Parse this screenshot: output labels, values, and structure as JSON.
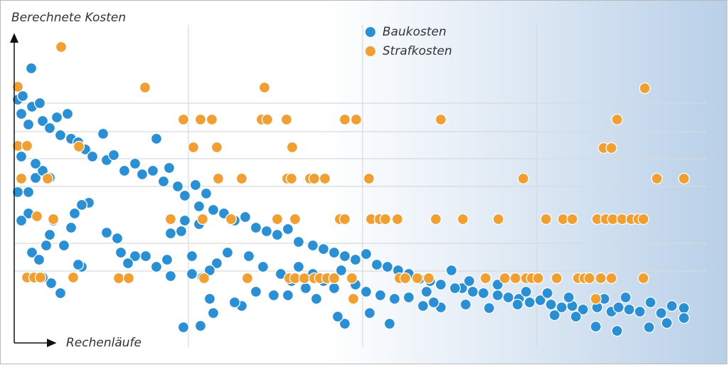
{
  "chart_data": {
    "type": "scatter",
    "y_label": "Berechnete Kosten",
    "x_label": "Rechenläufe",
    "xlim": [
      20,
      1000
    ],
    "ylim": [
      0,
      450
    ],
    "series": [
      {
        "name": "Baukosten",
        "color": "#2b8fd4",
        "x": [
          44,
          25,
          32,
          45,
          56,
          30,
          40,
          60,
          70,
          80,
          95,
          85,
          100,
          110,
          120,
          145,
          130,
          150,
          160,
          175,
          190,
          220,
          200,
          215,
          238,
          230,
          250,
          275,
          260,
          290,
          280,
          300,
          315,
          330,
          345,
          360,
          375,
          390,
          405,
          420,
          440,
          455,
          470,
          485,
          500,
          515,
          530,
          545,
          560,
          575,
          590,
          605,
          620,
          635,
          650,
          665,
          680,
          700,
          715,
          730,
          745,
          760,
          775,
          790,
          805,
          820,
          840,
          860,
          870,
          885,
          900,
          915,
          930,
          945,
          962,
          962,
          938,
          913,
          868,
          838,
          810,
          780,
          728,
          688,
          655,
          620,
          595,
          548,
          520,
          485,
          475,
          445,
          405,
          385,
          360,
          340,
          330,
          300,
          295,
          282,
          258,
          305,
          295,
          285,
          270,
          270,
          240,
          235,
          220,
          205,
          190,
          180,
          170,
          165,
          150,
          125,
          115,
          105,
          100,
          90,
          115,
          110,
          85,
          72,
          60,
          45,
          55,
          65,
          70,
          75,
          40,
          30,
          25,
          40,
          50,
          60,
          30,
          50,
          70,
          240,
          255,
          260,
          280,
          320,
          350,
          370,
          395,
          410,
          430,
          420,
          440,
          455,
          470,
          480,
          500,
          515,
          535,
          555,
          575,
          600,
          610,
          640,
          660,
          700,
          740,
          770,
          800,
          850,
          880
        ],
        "values": [
          384,
          340,
          345,
          330,
          335,
          320,
          305,
          310,
          300,
          315,
          320,
          290,
          285,
          280,
          270,
          292,
          260,
          255,
          262,
          240,
          250,
          285,
          235,
          240,
          244,
          225,
          218,
          220,
          205,
          208,
          190,
          185,
          180,
          170,
          175,
          160,
          155,
          150,
          158,
          140,
          135,
          130,
          125,
          120,
          115,
          123,
          108,
          105,
          100,
          95,
          88,
          85,
          80,
          100,
          75,
          70,
          68,
          65,
          62,
          60,
          55,
          58,
          52,
          48,
          50,
          45,
          48,
          42,
          48,
          45,
          42,
          55,
          40,
          50,
          47,
          33,
          26,
          20,
          15,
          21,
          35,
          37,
          52,
          47,
          52,
          48,
          50,
          25,
          40,
          25,
          35,
          60,
          65,
          65,
          70,
          50,
          55,
          40,
          60,
          22,
          20,
          110,
          100,
          90,
          95,
          120,
          92,
          115,
          105,
          120,
          120,
          110,
          125,
          145,
          153,
          195,
          192,
          180,
          160,
          135,
          105,
          108,
          68,
          82,
          90,
          125,
          115,
          135,
          150,
          170,
          180,
          170,
          210,
          210,
          230,
          240,
          260,
          250,
          230,
          152,
          155,
          170,
          165,
          125,
          120,
          105,
          95,
          85,
          75,
          105,
          95,
          85,
          75,
          100,
          80,
          70,
          65,
          60,
          62,
          70,
          55,
          75,
          85,
          80,
          70,
          68,
          62,
          60,
          62
        ]
      },
      {
        "name": "Strafkosten",
        "color": "#f0a032",
        "x": [
          86,
          25,
          204,
          372,
          907,
          258,
          282,
          298,
          368,
          376,
          403,
          485,
          501,
          620,
          868,
          25,
          38,
          111,
          272,
          305,
          411,
          849,
          860,
          30,
          67,
          307,
          340,
          404,
          410,
          436,
          442,
          457,
          519,
          736,
          924,
          962,
          52,
          75,
          240,
          285,
          325,
          390,
          415,
          478,
          485,
          522,
          534,
          542,
          559,
          613,
          651,
          701,
          768,
          792,
          805,
          840,
          852,
          862,
          875,
          888,
          898,
          905,
          38,
          48,
          57,
          103,
          167,
          181,
          287,
          348,
          407,
          415,
          428,
          442,
          450,
          460,
          470,
          495,
          562,
          570,
          587,
          603,
          683,
          710,
          725,
          740,
          748,
          757,
          783,
          813,
          822,
          829,
          845,
          860,
          905,
          497,
          838
        ],
        "values": [
          414,
          358,
          357,
          357,
          356,
          312,
          312,
          312,
          312,
          312,
          312,
          312,
          312,
          312,
          312,
          275,
          275,
          274,
          273,
          273,
          273,
          272,
          272,
          229,
          229,
          229,
          229,
          229,
          229,
          229,
          229,
          229,
          229,
          229,
          229,
          229,
          176,
          172,
          172,
          172,
          172,
          172,
          172,
          172,
          172,
          172,
          172,
          172,
          172,
          172,
          172,
          172,
          172,
          172,
          172,
          172,
          172,
          172,
          172,
          172,
          172,
          172,
          90,
          90,
          90,
          90,
          89,
          89,
          89,
          89,
          89,
          89,
          89,
          89,
          89,
          89,
          89,
          89,
          89,
          89,
          89,
          89,
          89,
          89,
          89,
          89,
          89,
          89,
          89,
          89,
          89,
          89,
          89,
          89,
          89,
          60,
          60
        ]
      }
    ]
  }
}
